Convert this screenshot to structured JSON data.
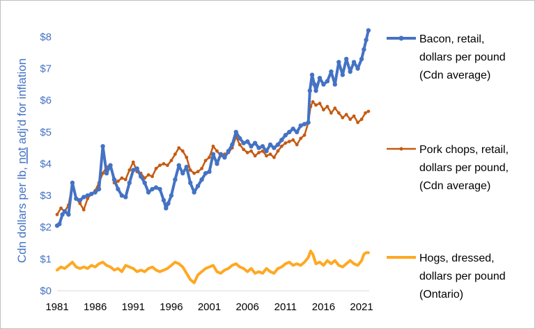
{
  "chart_data": {
    "type": "line",
    "ylabel_parts": [
      "Cdn dollars per lb, ",
      "not",
      " adj'd for inflation"
    ],
    "yticks": [
      "$0",
      "$1",
      "$2",
      "$3",
      "$4",
      "$5",
      "$6",
      "$7",
      "$8"
    ],
    "ylim": [
      0,
      8.5
    ],
    "xticks": [
      "1981",
      "1986",
      "1991",
      "1996",
      "2001",
      "2006",
      "2011",
      "2016",
      "2021"
    ],
    "xlim": [
      1981,
      2022
    ],
    "grid": false,
    "legend_position": "right",
    "series": [
      {
        "id": "bacon",
        "legend_lines": [
          "Bacon, retail,",
          "dollars per pound",
          "(Cdn average)"
        ],
        "color": "#4472c4",
        "points": [
          [
            1981.0,
            2.05
          ],
          [
            1981.3,
            2.1
          ],
          [
            1981.7,
            2.4
          ],
          [
            1982.0,
            2.5
          ],
          [
            1982.5,
            2.4
          ],
          [
            1983.0,
            3.4
          ],
          [
            1983.5,
            2.9
          ],
          [
            1984.0,
            2.85
          ],
          [
            1984.5,
            2.95
          ],
          [
            1985.0,
            3.0
          ],
          [
            1985.5,
            3.05
          ],
          [
            1986.0,
            3.1
          ],
          [
            1986.5,
            3.2
          ],
          [
            1987.0,
            4.55
          ],
          [
            1987.5,
            3.7
          ],
          [
            1988.0,
            3.95
          ],
          [
            1988.5,
            3.5
          ],
          [
            1989.0,
            3.2
          ],
          [
            1989.5,
            3.0
          ],
          [
            1990.0,
            2.95
          ],
          [
            1990.5,
            3.4
          ],
          [
            1991.0,
            3.8
          ],
          [
            1991.5,
            3.85
          ],
          [
            1992.0,
            3.6
          ],
          [
            1992.5,
            3.4
          ],
          [
            1993.0,
            3.1
          ],
          [
            1993.5,
            3.2
          ],
          [
            1994.0,
            3.25
          ],
          [
            1994.5,
            3.2
          ],
          [
            1995.0,
            2.85
          ],
          [
            1995.3,
            2.6
          ],
          [
            1995.6,
            2.75
          ],
          [
            1996.0,
            3.0
          ],
          [
            1996.5,
            3.5
          ],
          [
            1997.0,
            3.95
          ],
          [
            1997.5,
            3.7
          ],
          [
            1998.0,
            3.9
          ],
          [
            1998.5,
            3.4
          ],
          [
            1999.0,
            3.1
          ],
          [
            1999.5,
            3.3
          ],
          [
            2000.0,
            3.5
          ],
          [
            2000.5,
            3.7
          ],
          [
            2001.0,
            3.75
          ],
          [
            2001.5,
            4.3
          ],
          [
            2002.0,
            4.0
          ],
          [
            2002.5,
            4.3
          ],
          [
            2003.0,
            4.2
          ],
          [
            2003.5,
            4.4
          ],
          [
            2004.0,
            4.6
          ],
          [
            2004.5,
            5.0
          ],
          [
            2005.0,
            4.8
          ],
          [
            2005.5,
            4.65
          ],
          [
            2006.0,
            4.7
          ],
          [
            2006.5,
            4.55
          ],
          [
            2007.0,
            4.65
          ],
          [
            2007.5,
            4.5
          ],
          [
            2008.0,
            4.55
          ],
          [
            2008.5,
            4.4
          ],
          [
            2009.0,
            4.6
          ],
          [
            2009.5,
            4.5
          ],
          [
            2010.0,
            4.6
          ],
          [
            2010.5,
            4.75
          ],
          [
            2011.0,
            4.9
          ],
          [
            2011.5,
            5.0
          ],
          [
            2012.0,
            5.1
          ],
          [
            2012.5,
            5.0
          ],
          [
            2013.0,
            5.2
          ],
          [
            2013.5,
            5.25
          ],
          [
            2014.0,
            5.3
          ],
          [
            2014.2,
            6.3
          ],
          [
            2014.5,
            6.8
          ],
          [
            2014.8,
            6.5
          ],
          [
            2015.0,
            6.3
          ],
          [
            2015.5,
            6.7
          ],
          [
            2016.0,
            6.5
          ],
          [
            2016.5,
            6.6
          ],
          [
            2017.0,
            6.9
          ],
          [
            2017.5,
            6.5
          ],
          [
            2018.0,
            7.2
          ],
          [
            2018.5,
            6.8
          ],
          [
            2019.0,
            7.3
          ],
          [
            2019.5,
            6.9
          ],
          [
            2020.0,
            7.2
          ],
          [
            2020.5,
            7.0
          ],
          [
            2021.0,
            7.3
          ],
          [
            2021.3,
            7.6
          ],
          [
            2021.6,
            7.9
          ],
          [
            2021.9,
            8.2
          ]
        ]
      },
      {
        "id": "pork_chops",
        "legend_lines": [
          "Pork chops, retail,",
          "dollars per pound,",
          "(Cdn average)"
        ],
        "color": "#c55a11",
        "points": [
          [
            1981.0,
            2.4
          ],
          [
            1981.5,
            2.6
          ],
          [
            1982.0,
            2.5
          ],
          [
            1982.5,
            2.7
          ],
          [
            1983.0,
            3.35
          ],
          [
            1983.5,
            2.9
          ],
          [
            1984.0,
            2.75
          ],
          [
            1984.5,
            2.55
          ],
          [
            1985.0,
            2.9
          ],
          [
            1985.5,
            3.05
          ],
          [
            1986.0,
            3.15
          ],
          [
            1986.5,
            3.4
          ],
          [
            1987.0,
            3.7
          ],
          [
            1987.5,
            3.9
          ],
          [
            1988.0,
            3.95
          ],
          [
            1988.5,
            3.4
          ],
          [
            1989.0,
            3.45
          ],
          [
            1989.5,
            3.55
          ],
          [
            1990.0,
            3.5
          ],
          [
            1990.5,
            3.8
          ],
          [
            1991.0,
            4.05
          ],
          [
            1991.5,
            3.75
          ],
          [
            1992.0,
            3.7
          ],
          [
            1992.5,
            3.55
          ],
          [
            1993.0,
            3.65
          ],
          [
            1993.5,
            3.6
          ],
          [
            1994.0,
            3.85
          ],
          [
            1994.5,
            3.95
          ],
          [
            1995.0,
            4.0
          ],
          [
            1995.5,
            3.95
          ],
          [
            1996.0,
            4.1
          ],
          [
            1996.5,
            4.3
          ],
          [
            1997.0,
            4.5
          ],
          [
            1997.5,
            4.4
          ],
          [
            1998.0,
            4.2
          ],
          [
            1998.5,
            3.8
          ],
          [
            1999.0,
            3.7
          ],
          [
            1999.5,
            3.75
          ],
          [
            2000.0,
            3.85
          ],
          [
            2000.5,
            4.1
          ],
          [
            2001.0,
            4.2
          ],
          [
            2001.5,
            4.55
          ],
          [
            2002.0,
            4.4
          ],
          [
            2002.5,
            4.25
          ],
          [
            2003.0,
            4.3
          ],
          [
            2003.5,
            4.35
          ],
          [
            2004.0,
            4.5
          ],
          [
            2004.5,
            4.85
          ],
          [
            2005.0,
            4.6
          ],
          [
            2005.5,
            4.45
          ],
          [
            2006.0,
            4.35
          ],
          [
            2006.5,
            4.4
          ],
          [
            2007.0,
            4.25
          ],
          [
            2007.5,
            4.35
          ],
          [
            2008.0,
            4.4
          ],
          [
            2008.5,
            4.25
          ],
          [
            2009.0,
            4.3
          ],
          [
            2009.5,
            4.2
          ],
          [
            2010.0,
            4.4
          ],
          [
            2010.5,
            4.55
          ],
          [
            2011.0,
            4.65
          ],
          [
            2011.5,
            4.7
          ],
          [
            2012.0,
            4.75
          ],
          [
            2012.5,
            4.6
          ],
          [
            2013.0,
            4.8
          ],
          [
            2013.5,
            4.9
          ],
          [
            2014.0,
            5.3
          ],
          [
            2014.3,
            5.8
          ],
          [
            2014.6,
            5.95
          ],
          [
            2015.0,
            5.85
          ],
          [
            2015.5,
            5.9
          ],
          [
            2016.0,
            5.7
          ],
          [
            2016.5,
            5.8
          ],
          [
            2017.0,
            5.6
          ],
          [
            2017.5,
            5.75
          ],
          [
            2018.0,
            5.6
          ],
          [
            2018.5,
            5.45
          ],
          [
            2019.0,
            5.55
          ],
          [
            2019.5,
            5.4
          ],
          [
            2020.0,
            5.5
          ],
          [
            2020.5,
            5.3
          ],
          [
            2021.0,
            5.4
          ],
          [
            2021.5,
            5.6
          ],
          [
            2021.9,
            5.65
          ]
        ]
      },
      {
        "id": "hogs",
        "legend_lines": [
          "Hogs, dressed,",
          "dollars per pound",
          "(Ontario)"
        ],
        "color": "#ffa821",
        "points": [
          [
            1981.0,
            0.65
          ],
          [
            1981.5,
            0.75
          ],
          [
            1982.0,
            0.7
          ],
          [
            1982.5,
            0.8
          ],
          [
            1983.0,
            0.9
          ],
          [
            1983.5,
            0.75
          ],
          [
            1984.0,
            0.7
          ],
          [
            1984.5,
            0.75
          ],
          [
            1985.0,
            0.7
          ],
          [
            1985.5,
            0.8
          ],
          [
            1986.0,
            0.75
          ],
          [
            1986.5,
            0.85
          ],
          [
            1987.0,
            0.9
          ],
          [
            1987.5,
            0.8
          ],
          [
            1988.0,
            0.75
          ],
          [
            1988.5,
            0.65
          ],
          [
            1989.0,
            0.7
          ],
          [
            1989.5,
            0.6
          ],
          [
            1990.0,
            0.8
          ],
          [
            1990.5,
            0.75
          ],
          [
            1991.0,
            0.7
          ],
          [
            1991.5,
            0.6
          ],
          [
            1992.0,
            0.65
          ],
          [
            1992.5,
            0.6
          ],
          [
            1993.0,
            0.7
          ],
          [
            1993.5,
            0.75
          ],
          [
            1994.0,
            0.65
          ],
          [
            1994.5,
            0.6
          ],
          [
            1995.0,
            0.65
          ],
          [
            1995.5,
            0.7
          ],
          [
            1996.0,
            0.8
          ],
          [
            1996.5,
            0.9
          ],
          [
            1997.0,
            0.85
          ],
          [
            1997.5,
            0.75
          ],
          [
            1998.0,
            0.55
          ],
          [
            1998.5,
            0.35
          ],
          [
            1999.0,
            0.25
          ],
          [
            1999.5,
            0.5
          ],
          [
            2000.0,
            0.6
          ],
          [
            2000.5,
            0.7
          ],
          [
            2001.0,
            0.75
          ],
          [
            2001.5,
            0.8
          ],
          [
            2002.0,
            0.6
          ],
          [
            2002.5,
            0.55
          ],
          [
            2003.0,
            0.65
          ],
          [
            2003.5,
            0.7
          ],
          [
            2004.0,
            0.8
          ],
          [
            2004.5,
            0.85
          ],
          [
            2005.0,
            0.75
          ],
          [
            2005.5,
            0.7
          ],
          [
            2006.0,
            0.6
          ],
          [
            2006.5,
            0.7
          ],
          [
            2007.0,
            0.55
          ],
          [
            2007.5,
            0.6
          ],
          [
            2008.0,
            0.55
          ],
          [
            2008.5,
            0.7
          ],
          [
            2009.0,
            0.6
          ],
          [
            2009.5,
            0.55
          ],
          [
            2010.0,
            0.7
          ],
          [
            2010.5,
            0.75
          ],
          [
            2011.0,
            0.85
          ],
          [
            2011.5,
            0.9
          ],
          [
            2012.0,
            0.8
          ],
          [
            2012.5,
            0.85
          ],
          [
            2013.0,
            0.8
          ],
          [
            2013.5,
            0.9
          ],
          [
            2014.0,
            1.05
          ],
          [
            2014.3,
            1.25
          ],
          [
            2014.6,
            1.15
          ],
          [
            2015.0,
            0.85
          ],
          [
            2015.5,
            0.9
          ],
          [
            2016.0,
            0.8
          ],
          [
            2016.5,
            0.95
          ],
          [
            2017.0,
            0.85
          ],
          [
            2017.5,
            0.95
          ],
          [
            2018.0,
            0.8
          ],
          [
            2018.5,
            0.75
          ],
          [
            2019.0,
            0.85
          ],
          [
            2019.5,
            0.95
          ],
          [
            2020.0,
            0.85
          ],
          [
            2020.5,
            0.8
          ],
          [
            2021.0,
            0.95
          ],
          [
            2021.3,
            1.15
          ],
          [
            2021.6,
            1.2
          ],
          [
            2021.9,
            1.2
          ]
        ]
      }
    ]
  }
}
